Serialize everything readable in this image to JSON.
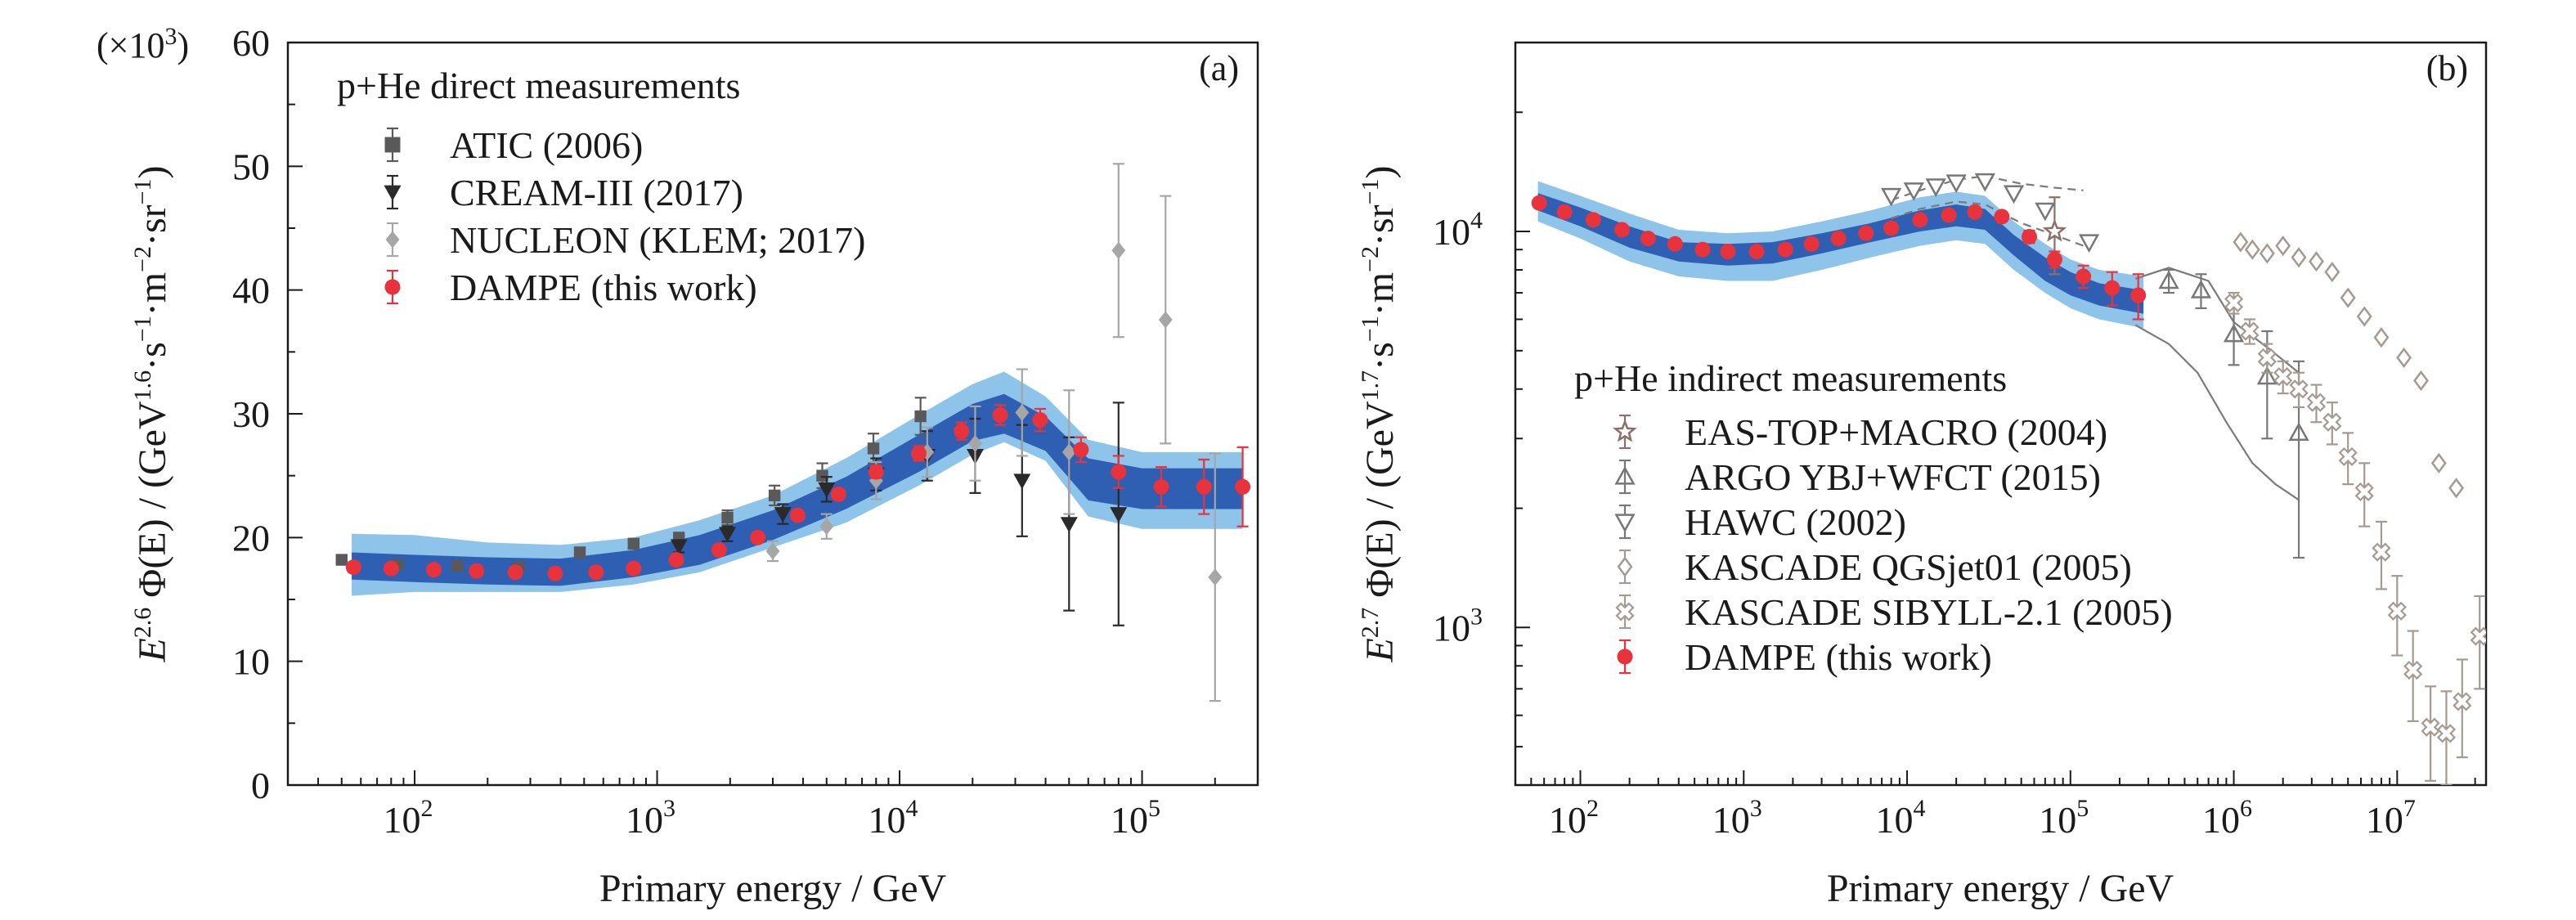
{
  "chart_data": [
    {
      "panel": "(a)",
      "type": "scatter",
      "xscale": "log",
      "yscale": "linear",
      "xlim": [
        30,
        300000
      ],
      "ylim": [
        0,
        60
      ],
      "xticks": [
        {
          "v": 100,
          "e": "2"
        },
        {
          "v": 1000,
          "e": "3"
        },
        {
          "v": 10000,
          "e": "4"
        },
        {
          "v": 100000,
          "e": "5"
        }
      ],
      "yticks": [
        0,
        10,
        20,
        30,
        40,
        50,
        60
      ],
      "y_multiplier": "(×10",
      "y_multiplier_exp": "3",
      "y_multiplier_close": ")",
      "xlabel": "Primary energy / GeV",
      "ylabel": {
        "e1": "E",
        "s1": "2.6",
        "mid": " Φ(E) / (GeV",
        "s2": "1.6",
        "t1": "·s",
        "s3": "−1",
        "t2": "·m",
        "s4": "−2",
        "t3": "·sr",
        "s5": "−1",
        "end": ")"
      },
      "legend_title": "p+He direct measurements",
      "band_outer": {
        "x": [
          55,
          100,
          200,
          400,
          800,
          1500,
          3000,
          6000,
          12000,
          20000,
          27000,
          40000,
          60000,
          100000,
          150000,
          260000
        ],
        "lo": [
          15.3,
          15.6,
          15.6,
          15.6,
          16.2,
          17.2,
          19.2,
          21.2,
          24.2,
          26.7,
          27.7,
          26.2,
          21.7,
          20.7,
          20.7,
          20.7
        ],
        "hi": [
          20.3,
          20.2,
          19.6,
          19.4,
          20.0,
          21.4,
          23.4,
          26.4,
          29.9,
          32.4,
          33.4,
          31.4,
          27.9,
          26.9,
          26.9,
          26.9
        ]
      },
      "band_inner": {
        "x": [
          55,
          100,
          200,
          400,
          800,
          1500,
          3000,
          6000,
          12000,
          20000,
          27000,
          40000,
          60000,
          100000,
          150000,
          260000
        ],
        "lo": [
          16.6,
          16.4,
          16.2,
          16.1,
          16.8,
          17.8,
          19.8,
          22.3,
          25.3,
          27.8,
          28.4,
          27.0,
          23.0,
          22.3,
          22.3,
          22.3
        ],
        "hi": [
          18.8,
          18.6,
          18.4,
          18.3,
          19.0,
          20.2,
          22.2,
          24.9,
          28.3,
          30.8,
          31.6,
          29.8,
          26.4,
          25.6,
          25.6,
          25.6
        ]
      },
      "series": [
        {
          "name": "ATIC (2006)",
          "marker": "square",
          "color": "#595959",
          "x": [
            50,
            85,
            150,
            270,
            480,
            800,
            1230,
            1950,
            3050,
            4800,
            7800,
            12200
          ],
          "y": [
            18.2,
            17.8,
            17.7,
            17.6,
            18.8,
            19.5,
            19.9,
            21.6,
            23.4,
            25.0,
            27.2,
            29.8
          ],
          "err": [
            0.3,
            0.3,
            0.3,
            0.3,
            0.4,
            0.4,
            0.5,
            0.6,
            0.8,
            1.0,
            1.2,
            1.5
          ]
        },
        {
          "name": "CREAM-III (2017)",
          "marker": "triangle-down",
          "color": "#2a2a2a",
          "x": [
            1230,
            1950,
            3300,
            5000,
            8000,
            13000,
            20500,
            32000,
            50000,
            80000
          ],
          "y": [
            19.3,
            20.3,
            21.9,
            23.9,
            25.1,
            26.6,
            26.6,
            24.6,
            21.1,
            21.9
          ],
          "err": [
            0.5,
            0.6,
            0.8,
            1.0,
            1.3,
            2.0,
            3.0,
            4.5,
            7.0,
            9.0
          ]
        },
        {
          "name": "NUCLEON (KLEM; 2017)",
          "marker": "diamond",
          "color": "#a6a6a6",
          "x": [
            3000,
            5000,
            8000,
            13000,
            20500,
            32000,
            50000,
            80000,
            125000,
            200000
          ],
          "y": [
            18.9,
            20.9,
            24.6,
            26.9,
            27.6,
            30.1,
            26.9,
            43.2,
            37.6,
            16.8
          ],
          "err": [
            0.8,
            1.0,
            1.5,
            2.0,
            3.0,
            3.5,
            5.0,
            7.0,
            10.0,
            10.0
          ]
        },
        {
          "name": "DAMPE (this work)",
          "marker": "circle",
          "color": "#e8323c",
          "x": [
            56,
            80,
            120,
            180,
            260,
            380,
            560,
            800,
            1200,
            1800,
            2600,
            3800,
            5600,
            8000,
            12000,
            18000,
            26000,
            38000,
            56000,
            80000,
            120000,
            180000,
            260000
          ],
          "y": [
            17.6,
            17.5,
            17.4,
            17.3,
            17.2,
            17.1,
            17.2,
            17.5,
            18.2,
            19.0,
            20.0,
            21.8,
            23.5,
            25.3,
            26.8,
            28.6,
            29.9,
            29.5,
            27.1,
            25.3,
            24.1,
            24.1,
            24.1
          ],
          "err": [
            0.4,
            0.4,
            0.4,
            0.4,
            0.4,
            0.4,
            0.4,
            0.4,
            0.4,
            0.4,
            0.4,
            0.4,
            0.4,
            0.5,
            0.6,
            0.7,
            0.8,
            0.9,
            1.0,
            1.3,
            1.6,
            2.2,
            3.2
          ]
        }
      ]
    },
    {
      "panel": "(b)",
      "type": "scatter",
      "xscale": "log",
      "yscale": "log",
      "xlim": [
        40,
        35000000
      ],
      "ylim": [
        400,
        30000
      ],
      "xticks": [
        {
          "v": 100,
          "e": "2"
        },
        {
          "v": 1000,
          "e": "3"
        },
        {
          "v": 10000,
          "e": "4"
        },
        {
          "v": 100000,
          "e": "5"
        },
        {
          "v": 1000000,
          "e": "6"
        },
        {
          "v": 10000000,
          "e": "7"
        }
      ],
      "yticks": [
        {
          "v": 1000,
          "e": "3"
        },
        {
          "v": 10000,
          "e": "4"
        }
      ],
      "xlabel": "Primary energy / GeV",
      "ylabel": {
        "e1": "E",
        "s1": "2.7",
        "mid": " Φ(E) / (GeV",
        "s2": "1.7",
        "t1": "·s",
        "s3": "−1",
        "t2": "·m",
        "s4": "−2",
        "t3": "·sr",
        "s5": "−1",
        "end": ")"
      },
      "legend_title": "p+He indirect measurements",
      "band_outer": {
        "x": [
          55,
          100,
          200,
          400,
          800,
          1500,
          3000,
          6000,
          12000,
          20000,
          30000,
          45000,
          70000,
          100000,
          150000,
          280000
        ],
        "lo": [
          10600,
          9600,
          8400,
          7700,
          7500,
          7500,
          8000,
          8600,
          9200,
          9500,
          9300,
          8000,
          7000,
          6400,
          6000,
          5700
        ],
        "hi": [
          13400,
          12300,
          11100,
          10100,
          9900,
          10000,
          10600,
          11300,
          12200,
          12600,
          12300,
          10600,
          9300,
          8500,
          8000,
          7700
        ]
      },
      "band_inner": {
        "x": [
          55,
          100,
          200,
          400,
          800,
          1500,
          3000,
          6000,
          12000,
          20000,
          30000,
          45000,
          70000,
          100000,
          150000,
          280000
        ],
        "lo": [
          11300,
          10300,
          9100,
          8400,
          8200,
          8300,
          8800,
          9400,
          10000,
          10300,
          10100,
          8700,
          7500,
          6900,
          6500,
          6200
        ],
        "hi": [
          12500,
          11500,
          10300,
          9400,
          9300,
          9400,
          9900,
          10500,
          11300,
          11700,
          11400,
          9800,
          8600,
          7900,
          7400,
          7100
        ]
      },
      "band_lines": {
        "dashed_upper": {
          "x": [
            8000,
            12000,
            20000,
            30000,
            50000,
            80000,
            120000
          ],
          "y": [
            12000,
            12700,
            13500,
            13800,
            13200,
            12900,
            12700
          ]
        },
        "dashed_lower": {
          "x": [
            8000,
            12000,
            20000,
            30000,
            50000,
            80000,
            120000
          ],
          "y": [
            10800,
            11400,
            11900,
            11700,
            10500,
            9800,
            9200
          ]
        },
        "argo_upper": {
          "x": [
            250000,
            400000,
            700000,
            1000000,
            1600000,
            2500000
          ],
          "y": [
            7600,
            8100,
            7500,
            5900,
            5100,
            4400
          ]
        },
        "argo_lower": {
          "x": [
            250000,
            400000,
            600000,
            900000,
            1300000,
            1800000,
            2500000
          ],
          "y": [
            5800,
            5200,
            4400,
            3300,
            2600,
            2300,
            2100
          ]
        }
      },
      "series": [
        {
          "name": "EAS-TOP+MACRO (2004)",
          "marker": "star",
          "color": "#8b6f6a",
          "x": [
            80000
          ],
          "y": [
            10000
          ],
          "err": [
            2200
          ]
        },
        {
          "name": "ARGO YBJ+WFCT (2015)",
          "marker": "triangle-up",
          "color": "#777777",
          "x": [
            400000,
            630000,
            1000000,
            1600000,
            2500000
          ],
          "y": [
            7500,
            7100,
            5500,
            4300,
            3100
          ],
          "err": [
            500,
            700,
            900,
            1300,
            1600
          ]
        },
        {
          "name": "HAWC (2002)",
          "marker": "triangle-down-open",
          "color": "#777777",
          "x": [
            8000,
            11000,
            15000,
            20000,
            30000,
            45000,
            70000,
            130000
          ],
          "y": [
            12300,
            12700,
            13000,
            13300,
            13400,
            12500,
            11300,
            9400
          ],
          "err": [
            0,
            0,
            0,
            0,
            0,
            0,
            0,
            0
          ]
        },
        {
          "name": "KASCADE QGSjet01 (2005)",
          "marker": "diamond-open",
          "color": "#a49a94",
          "x": [
            1100000,
            1300000,
            1600000,
            2000000,
            2500000,
            3200000,
            4000000,
            5000000,
            6300000,
            8000000,
            11000000,
            14000000,
            18000000,
            23000000
          ],
          "y": [
            9400,
            9000,
            8800,
            9200,
            8600,
            8400,
            7900,
            6800,
            6100,
            5400,
            4800,
            4200,
            2600,
            2250
          ],
          "err": [
            0,
            0,
            0,
            0,
            0,
            0,
            0,
            0,
            0,
            0,
            0,
            0,
            0,
            0
          ]
        },
        {
          "name": "KASCADE SIBYLL-2.1 (2005)",
          "marker": "cross-open",
          "color": "#a49a94",
          "x": [
            1000000,
            1250000,
            1600000,
            2000000,
            2500000,
            3200000,
            4000000,
            5000000,
            6300000,
            8000000,
            10000000,
            12500000,
            16000000,
            20000000,
            25000000,
            32000000
          ],
          "y": [
            6600,
            5600,
            4800,
            4300,
            4000,
            3700,
            3300,
            2700,
            2200,
            1550,
            1100,
            780,
            560,
            540,
            650,
            950
          ],
          "err": [
            400,
            400,
            400,
            400,
            400,
            400,
            400,
            400,
            400,
            300,
            250,
            200,
            150,
            150,
            180,
            250
          ]
        },
        {
          "name": "DAMPE (this work)",
          "marker": "circle",
          "color": "#e8323c",
          "x": [
            56,
            80,
            120,
            180,
            260,
            380,
            560,
            800,
            1200,
            1800,
            2600,
            3800,
            5600,
            8000,
            12000,
            18000,
            26000,
            38000,
            56000,
            80000,
            120000,
            180000,
            260000
          ],
          "y": [
            11800,
            11200,
            10700,
            10100,
            9600,
            9300,
            9000,
            8900,
            8900,
            9000,
            9300,
            9600,
            9900,
            10200,
            10700,
            11000,
            11200,
            10900,
            9700,
            8500,
            7700,
            7200,
            6900
          ],
          "err": [
            200,
            200,
            200,
            200,
            200,
            200,
            200,
            200,
            200,
            200,
            200,
            200,
            200,
            200,
            200,
            250,
            300,
            300,
            350,
            400,
            500,
            700,
            900
          ]
        }
      ]
    }
  ]
}
